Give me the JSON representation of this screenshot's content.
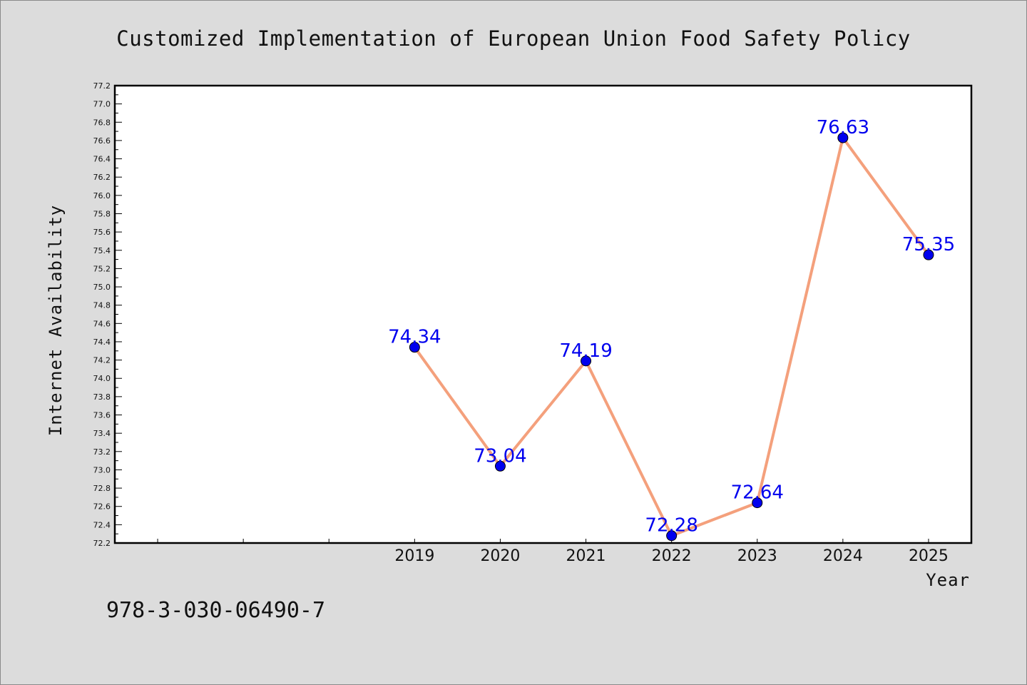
{
  "chart_data": {
    "type": "line",
    "title": "Customized Implementation of European Union Food Safety Policy",
    "xlabel": "Year",
    "ylabel": "Internet Availability",
    "categories": [
      "2019",
      "2020",
      "2021",
      "2022",
      "2023",
      "2024",
      "2025"
    ],
    "series": [
      {
        "values": [
          74.34,
          73.04,
          74.19,
          72.28,
          72.64,
          76.63,
          75.35
        ],
        "labels": [
          "74.34",
          "73.04",
          "74.19",
          "72.28",
          "72.64",
          "76.63",
          "75.35"
        ]
      }
    ],
    "xlim": [
      2015.5,
      2025.5
    ],
    "ylim": [
      72.2,
      77.2
    ],
    "yticks": [
      "72.2",
      "72.4",
      "72.6",
      "72.8",
      "73.0",
      "73.2",
      "73.4",
      "73.6",
      "73.8",
      "74.0",
      "74.2",
      "74.4",
      "74.6",
      "74.8",
      "75.0",
      "75.2",
      "75.4",
      "75.6",
      "75.8",
      "76.0",
      "76.2",
      "76.4",
      "76.6",
      "76.8",
      "77.0",
      "77.2"
    ],
    "grid": false,
    "line_color": "#f4a07c",
    "marker_color": "#0000ee",
    "label_color": "#0000ee",
    "background_color": "#dcdcdc",
    "plot_background": "#ffffff"
  },
  "footer": {
    "isbn": "978-3-030-06490-7"
  }
}
